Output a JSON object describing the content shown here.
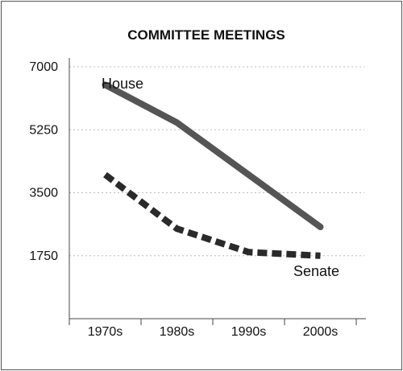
{
  "chart_data": {
    "type": "line",
    "title": "COMMITTEE MEETINGS",
    "xlabel": "",
    "ylabel": "",
    "categories": [
      "1970s",
      "1980s",
      "1990s",
      "2000s"
    ],
    "ylim": [
      0,
      7000
    ],
    "yticks": [
      "1750",
      "3500",
      "5250",
      "7000"
    ],
    "grid": "horizontal dotted",
    "legend": "none",
    "series": [
      {
        "name": "House",
        "style": "solid",
        "color": "#555555",
        "values": [
          6500,
          5450,
          4000,
          2550
        ]
      },
      {
        "name": "Senate",
        "style": "dashed",
        "color": "#2a2a2a",
        "values": [
          4000,
          2500,
          1850,
          1750
        ]
      }
    ]
  }
}
